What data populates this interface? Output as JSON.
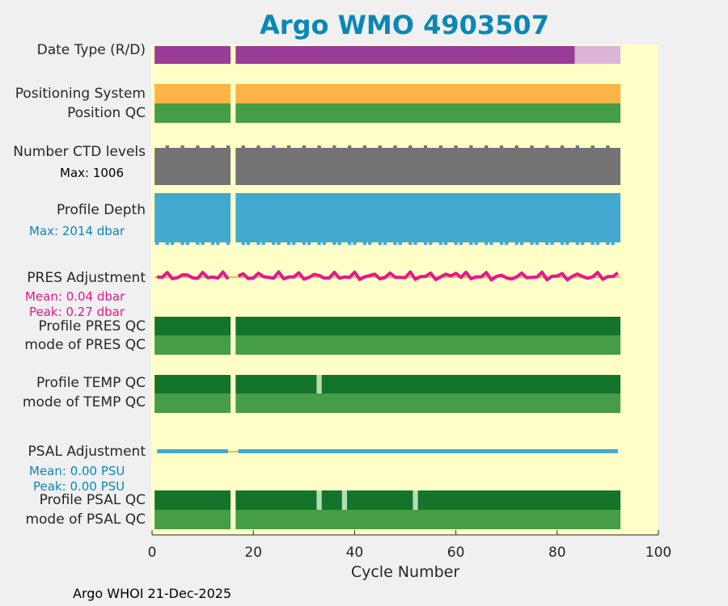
{
  "title": "Argo WMO 4903507",
  "footer": "Argo WHOI 21-Dec-2025",
  "colors": {
    "plot_bg": "#ffffc8",
    "page_bg": "#f0f0f0",
    "title": "#0b87b5",
    "date_real": "#9a3c98",
    "date_delayed": "#dcb4da",
    "positioning": "#fcb444",
    "qc_light_green": "#459d46",
    "qc_dark_green": "#14742c",
    "qc_pale_green": "#b8dcb0",
    "ctd": "#737373",
    "depth": "#43a9cf",
    "pres_adj": "#e6178c",
    "adj_orange": "#fcb444",
    "psal_adj": "#43a9cf",
    "cyan_text": "#0b87b5",
    "black_text": "#000000"
  },
  "rows": {
    "date_type": "Date Type (R/D)",
    "positioning_system": "Positioning System",
    "position_qc": "Position QC",
    "ctd_levels": "Number CTD levels",
    "ctd_max": "Max: 1006",
    "profile_depth": "Profile Depth",
    "depth_max": "Max: 2014 dbar",
    "pres_adjustment": "PRES Adjustment",
    "pres_mean": "Mean: 0.04 dbar",
    "pres_peak": "Peak: 0.27 dbar",
    "profile_pres_qc": "Profile PRES QC",
    "mode_pres_qc": "mode of PRES QC",
    "profile_temp_qc": "Profile TEMP QC",
    "mode_temp_qc": "mode of TEMP QC",
    "psal_adjustment": "PSAL Adjustment",
    "psal_mean": "Mean: 0.00 PSU",
    "psal_peak": "Peak: 0.00 PSU",
    "profile_psal_qc": "Profile PSAL QC",
    "mode_psal_qc": "mode of PSAL QC"
  },
  "chart_data": {
    "type": "bar",
    "title": "Argo WMO 4903507",
    "xlabel": "Cycle Number",
    "ylabel": "",
    "xlim": [
      0,
      100
    ],
    "xticks": [
      0,
      20,
      40,
      60,
      80,
      100
    ],
    "grid": false,
    "cycles": {
      "first": 1,
      "last": 92,
      "missing": [
        16
      ]
    },
    "date_type": {
      "realtime_cycles": [
        1,
        83
      ],
      "delayed_cycles": [
        84,
        92
      ]
    },
    "profile_temp_qc_flagged_cycles": [
      33
    ],
    "profile_psal_qc_flagged_cycles": [
      33,
      38,
      52
    ],
    "ctd_levels_max": 1006,
    "profile_depth_max_dbar": 2014,
    "pres_adjustment": {
      "mean_dbar": 0.04,
      "peak_dbar": 0.27
    },
    "psal_adjustment": {
      "mean_psu": 0.0,
      "peak_psu": 0.0
    }
  }
}
